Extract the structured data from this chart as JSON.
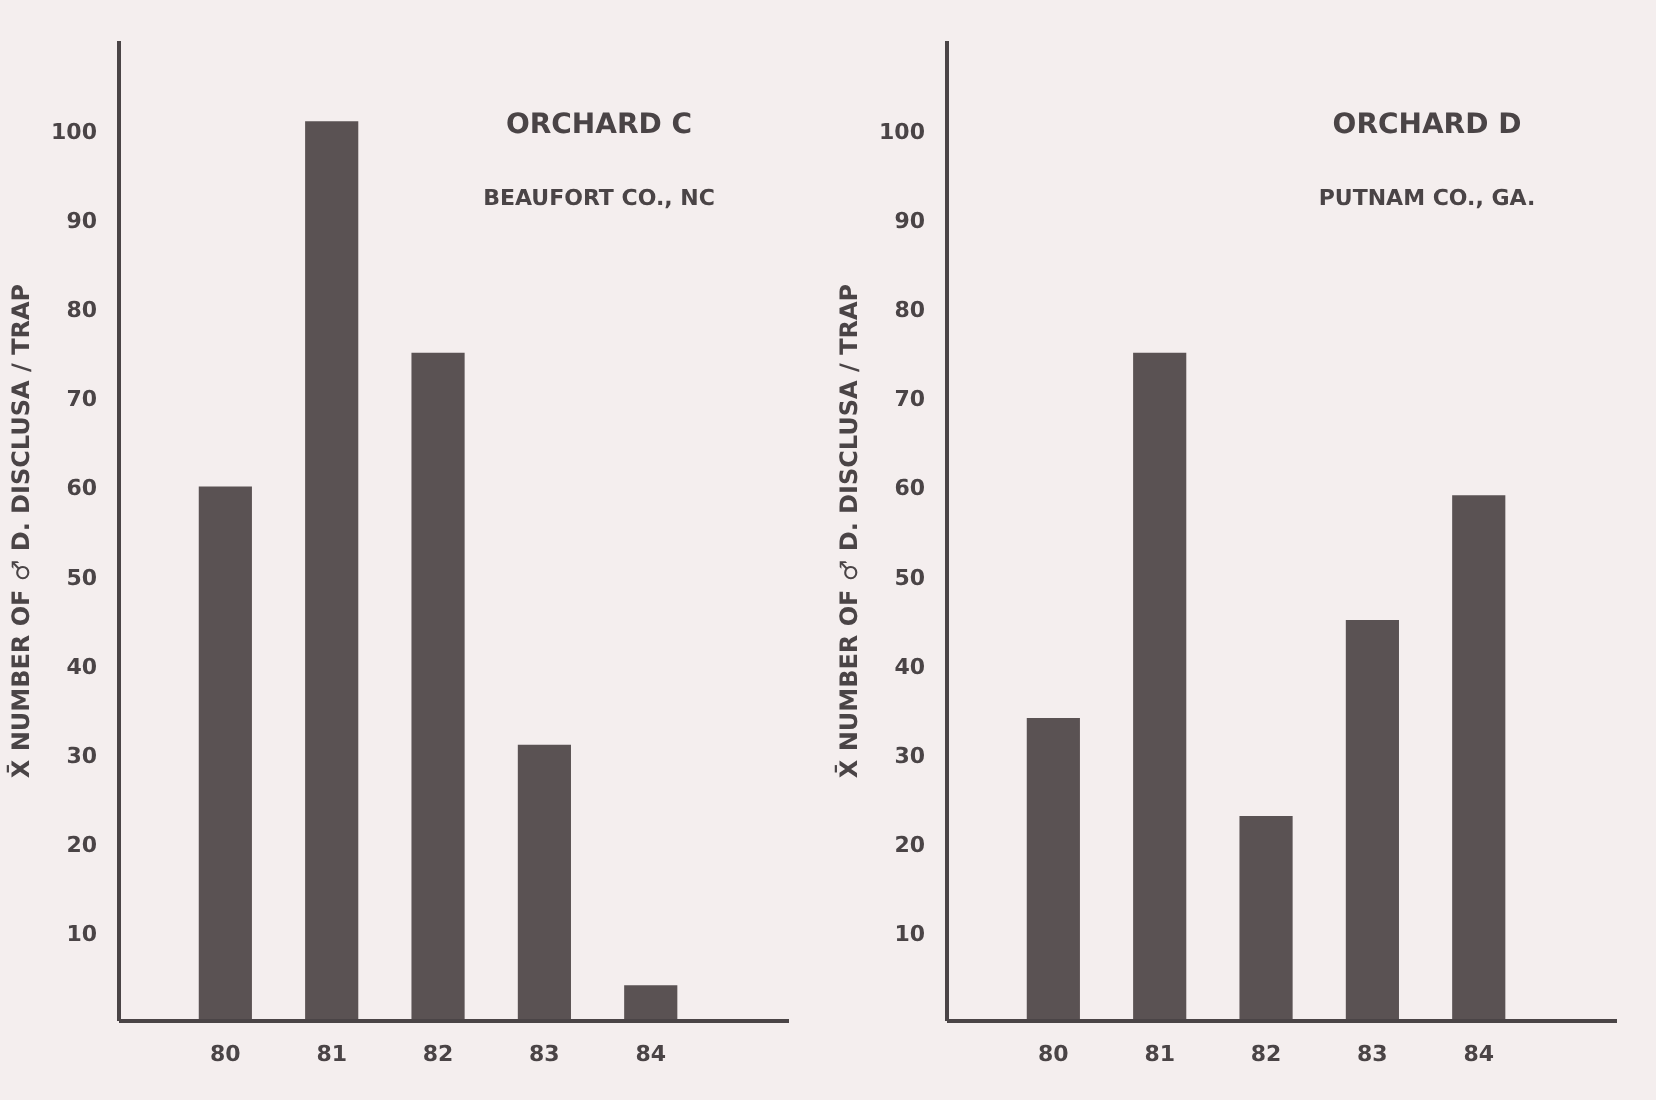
{
  "chart_data": [
    {
      "type": "bar",
      "title": "ORCHARD C",
      "subtitle": "BEAUFORT CO., NC",
      "ylabel": "X̄ NUMBER OF ♂ D. DISCLUSA / TRAP",
      "categories": [
        "80",
        "81",
        "82",
        "83",
        "84"
      ],
      "values": [
        60,
        101,
        75,
        31,
        4
      ],
      "color": "#5a5253",
      "ylim": [
        0,
        110
      ],
      "yticks": [
        10,
        20,
        30,
        40,
        50,
        60,
        70,
        80,
        90,
        100
      ],
      "grid": false
    },
    {
      "type": "bar",
      "title": "ORCHARD D",
      "subtitle": "PUTNAM CO., GA.",
      "ylabel": "X̄ NUMBER OF ♂ D. DISCLUSA / TRAP",
      "categories": [
        "80",
        "81",
        "82",
        "83",
        "84"
      ],
      "values": [
        34,
        75,
        23,
        45,
        59
      ],
      "color": "#5a5253",
      "ylim": [
        0,
        110
      ],
      "yticks": [
        10,
        20,
        30,
        40,
        50,
        60,
        70,
        80,
        90,
        100
      ],
      "grid": false
    }
  ]
}
